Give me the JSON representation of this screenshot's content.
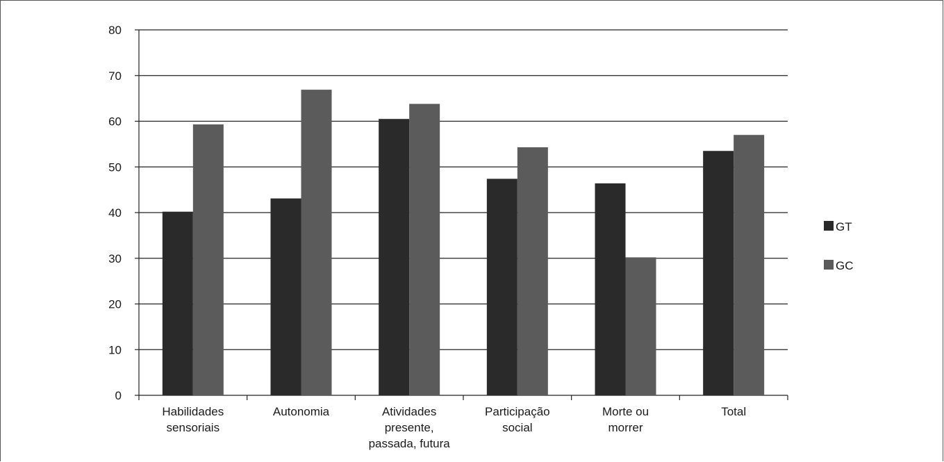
{
  "chart_data": {
    "type": "bar",
    "title": "",
    "xlabel": "",
    "ylabel": "",
    "ylim": [
      0,
      80
    ],
    "yticks": [
      0,
      10,
      20,
      30,
      40,
      50,
      60,
      70,
      80
    ],
    "grid": true,
    "legend_position": "right",
    "categories": [
      [
        "Habilidades",
        "sensoriais"
      ],
      [
        "Autonomia"
      ],
      [
        "Atividades",
        "presente,",
        "passada, futura"
      ],
      [
        "Participação",
        "social"
      ],
      [
        "Morte ou",
        "morrer"
      ],
      [
        "Total"
      ]
    ],
    "series": [
      {
        "name": "GT",
        "color": "#2a2a2a",
        "values": [
          40.2,
          43.1,
          60.5,
          47.4,
          46.4,
          53.5
        ]
      },
      {
        "name": "GC",
        "color": "#5b5b5b",
        "values": [
          59.3,
          66.9,
          63.8,
          54.3,
          30.2,
          57.0
        ]
      }
    ]
  }
}
